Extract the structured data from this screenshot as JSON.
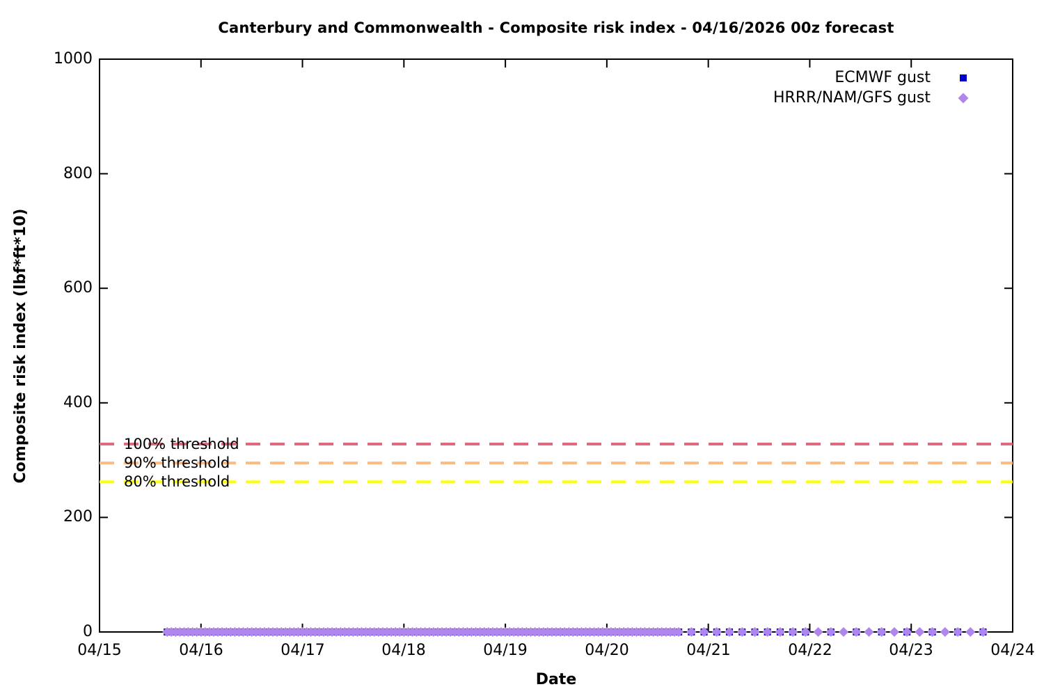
{
  "chart_data": {
    "type": "scatter",
    "title": "Canterbury and Commonwealth - Composite risk index - 04/16/2026 00z forecast",
    "xlabel": "Date",
    "ylabel": "Composite risk index (lbf*ft*10)",
    "x_tick_labels": [
      "04/15",
      "04/16",
      "04/17",
      "04/18",
      "04/19",
      "04/20",
      "04/21",
      "04/22",
      "04/23",
      "04/24"
    ],
    "y_tick_labels": [
      "0",
      "200",
      "400",
      "600",
      "800",
      "1000"
    ],
    "ylim": [
      0,
      1000
    ],
    "x_range_days": 9,
    "grid": "off",
    "legend_position": "top-right-inside",
    "legend": [
      {
        "label": "ECMWF gust",
        "marker": "square",
        "color": "#0000cd"
      },
      {
        "label": "HRRR/NAM/GFS gust",
        "marker": "diamond",
        "color": "#b086ec"
      }
    ],
    "thresholds": [
      {
        "label": "100% threshold",
        "value": 328,
        "color": "#df6a80"
      },
      {
        "label": "90% threshold",
        "value": 295,
        "color": "#f8bc82"
      },
      {
        "label": "80% threshold",
        "value": 262,
        "color": "#ffff00"
      }
    ],
    "series": [
      {
        "name": "ECMWF gust",
        "marker": "square",
        "color": "#0000cd",
        "size": 10,
        "y": 0,
        "x_unit": "hours after 04/15 00:00",
        "segments": [
          {
            "start_h": 16,
            "end_h": 137,
            "step_h": 1
          },
          {
            "start_h": 140,
            "end_h": 164,
            "step_h": 3
          },
          {
            "start_h": 167,
            "end_h": 209,
            "step_h": 6
          }
        ]
      },
      {
        "name": "HRRR/NAM/GFS gust",
        "marker": "diamond",
        "color": "#b086ec",
        "size": 14,
        "y": 0,
        "x_unit": "hours after 04/15 00:00",
        "segments": [
          {
            "start_h": 16,
            "end_h": 137,
            "step_h": 1
          },
          {
            "start_h": 140,
            "end_h": 209,
            "step_h": 3
          }
        ]
      }
    ]
  }
}
